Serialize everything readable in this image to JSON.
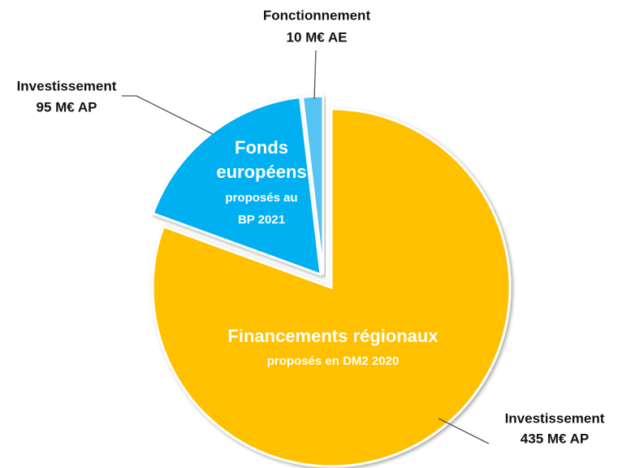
{
  "chart_data": {
    "type": "pie",
    "categories": [
      "Investissement",
      "Investissement",
      "Fonctionnement"
    ],
    "values": [
      435,
      95,
      10
    ],
    "value_labels": [
      "435 M€ AP",
      "95 M€ AP",
      "10 M€ AE"
    ],
    "colors": [
      "#FFC000",
      "#00B0F0",
      "#55C4F2"
    ],
    "inner_labels": [
      [
        "Financements régionaux",
        "proposés en DM2 2020"
      ],
      [
        "Fonds",
        "européens",
        "proposés au",
        "BP 2021"
      ]
    ]
  }
}
